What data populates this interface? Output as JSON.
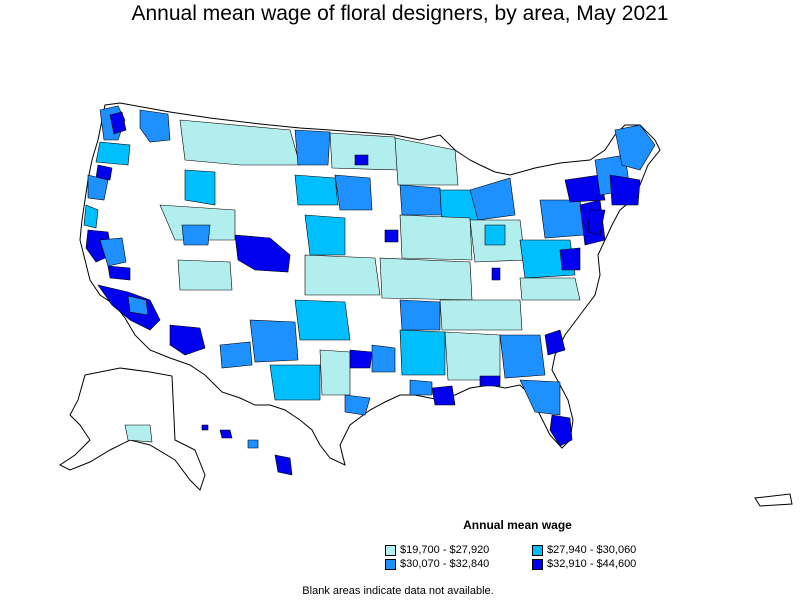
{
  "title": "Annual mean wage of floral designers, by area, May 2021",
  "legend": {
    "title": "Annual mean wage",
    "items": [
      {
        "label": "$19,700 - $27,920",
        "color": "#b2eeee"
      },
      {
        "label": "$27,940 - $30,060",
        "color": "#00bfff"
      },
      {
        "label": "$30,070 - $32,840",
        "color": "#1e90ff"
      },
      {
        "label": "$32,910 - $44,600",
        "color": "#0000ee"
      }
    ]
  },
  "note": "Blank areas indicate data not available."
}
